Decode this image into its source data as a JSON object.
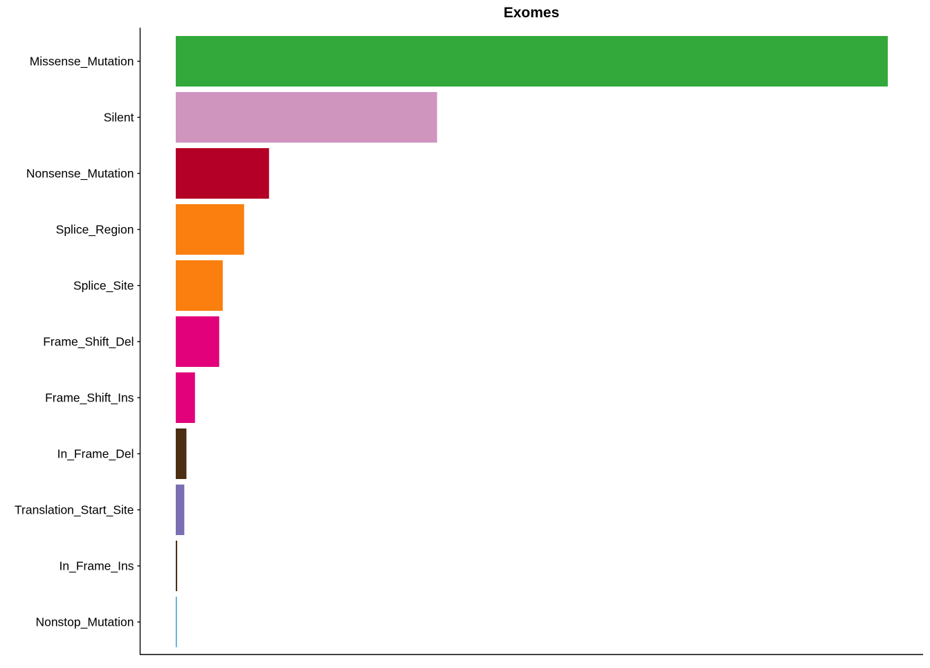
{
  "chart_data": {
    "type": "bar",
    "orientation": "horizontal",
    "title": "Exomes",
    "xlabel": "",
    "ylabel": "",
    "x_axis_ticks_shown": false,
    "grid": false,
    "legend": "none",
    "categories": [
      "Missense_Mutation",
      "Silent",
      "Nonsense_Mutation",
      "Splice_Region",
      "Splice_Site",
      "Frame_Shift_Del",
      "Frame_Shift_Ins",
      "In_Frame_Del",
      "Translation_Start_Site",
      "In_Frame_Ins",
      "Nonstop_Mutation"
    ],
    "values": [
      1000,
      367,
      131,
      96,
      66,
      61,
      27,
      15,
      12,
      2,
      1
    ],
    "value_scale": "relative (no axis tick labels shown; Missense_Mutation = 1000)",
    "colors": [
      "#33A93C",
      "#CF95BF",
      "#B40026",
      "#FA7F0E",
      "#FA7F0E",
      "#E2007B",
      "#E2007B",
      "#4C2E13",
      "#7B6EB2",
      "#4C2E13",
      "#3A9BDB"
    ],
    "xlim": [
      0,
      1050
    ]
  }
}
